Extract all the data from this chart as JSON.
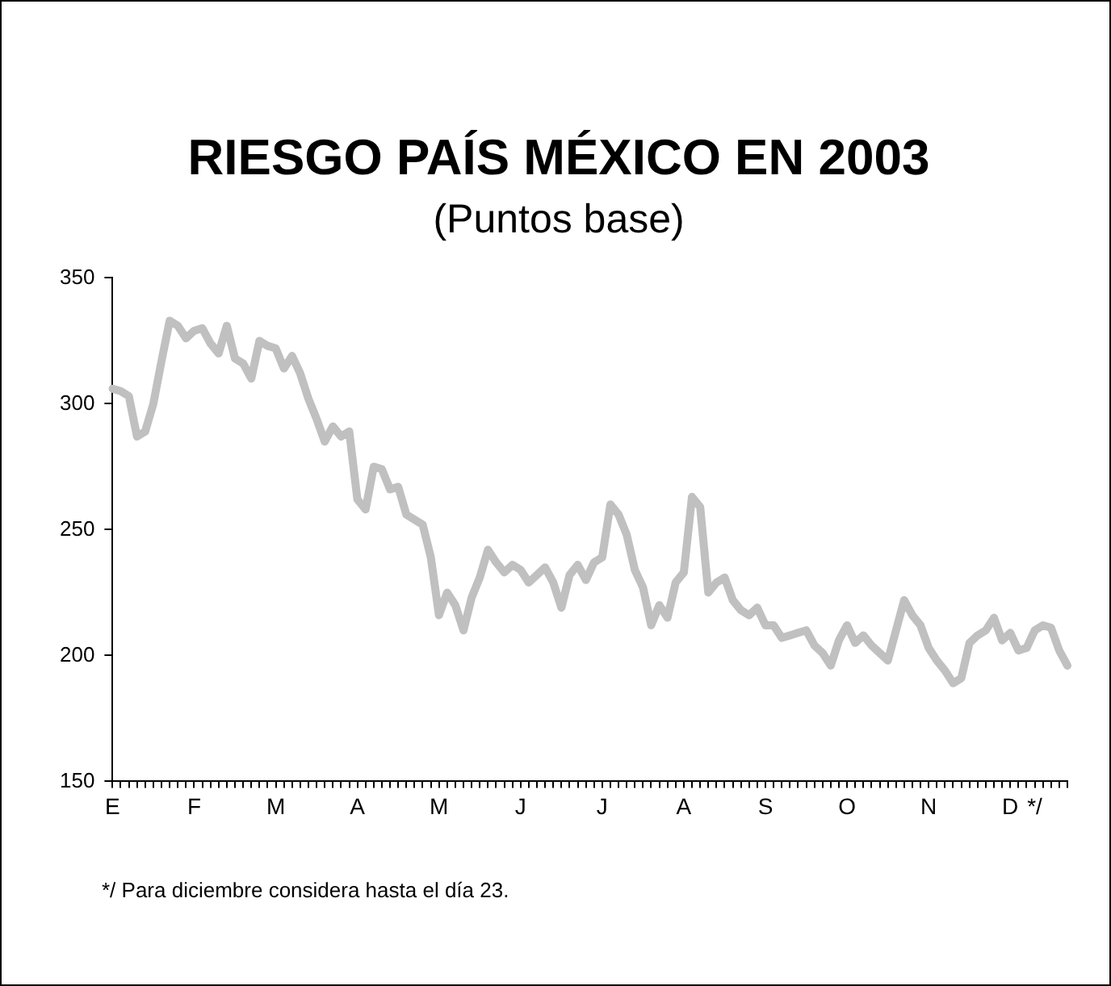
{
  "chart_data": {
    "type": "line",
    "title": "RIESGO PAÍS MÉXICO EN 2003",
    "subtitle": "(Puntos base)",
    "categories": [
      "E",
      null,
      null,
      null,
      null,
      null,
      null,
      null,
      null,
      null,
      "F",
      null,
      null,
      null,
      null,
      null,
      null,
      null,
      null,
      null,
      "M",
      null,
      null,
      null,
      null,
      null,
      null,
      null,
      null,
      null,
      "A",
      null,
      null,
      null,
      null,
      null,
      null,
      null,
      null,
      null,
      "M",
      null,
      null,
      null,
      null,
      null,
      null,
      null,
      null,
      null,
      "J",
      null,
      null,
      null,
      null,
      null,
      null,
      null,
      null,
      null,
      "J",
      null,
      null,
      null,
      null,
      null,
      null,
      null,
      null,
      null,
      "A",
      null,
      null,
      null,
      null,
      null,
      null,
      null,
      null,
      null,
      "S",
      null,
      null,
      null,
      null,
      null,
      null,
      null,
      null,
      null,
      "O",
      null,
      null,
      null,
      null,
      null,
      null,
      null,
      null,
      null,
      "N",
      null,
      null,
      null,
      null,
      null,
      null,
      null,
      null,
      null,
      "D",
      null,
      null,
      "*/",
      null,
      null,
      null,
      null
    ],
    "series": [
      {
        "color": "#c0c0c0",
        "values": [
          306,
          305,
          303,
          287,
          289,
          300,
          317,
          333,
          331,
          326,
          329,
          330,
          324,
          320,
          331,
          318,
          316,
          310,
          325,
          323,
          322,
          314,
          319,
          312,
          302,
          294,
          285,
          291,
          287,
          289,
          262,
          258,
          275,
          274,
          266,
          267,
          256,
          254,
          252,
          239,
          216,
          225,
          220,
          210,
          223,
          231,
          242,
          237,
          233,
          236,
          234,
          229,
          232,
          235,
          229,
          219,
          232,
          236,
          230,
          237,
          239,
          260,
          256,
          248,
          234,
          227,
          212,
          220,
          215,
          229,
          233,
          263,
          259,
          225,
          229,
          231,
          222,
          218,
          216,
          219,
          212,
          212,
          207,
          208,
          209,
          210,
          204,
          201,
          196,
          206,
          212,
          205,
          208,
          204,
          201,
          198,
          210,
          222,
          216,
          212,
          203,
          198,
          194,
          189,
          191,
          205,
          208,
          210,
          215,
          206,
          209,
          202,
          203,
          210,
          212,
          211,
          202,
          196
        ]
      }
    ],
    "ylim": [
      150,
      350
    ],
    "yticks": [
      150,
      200,
      250,
      300,
      350
    ],
    "grid": false,
    "legend": false,
    "marker": "none",
    "line_style": "solid",
    "annotations": [
      "*/ Para diciembre considera hasta el día 23."
    ]
  }
}
